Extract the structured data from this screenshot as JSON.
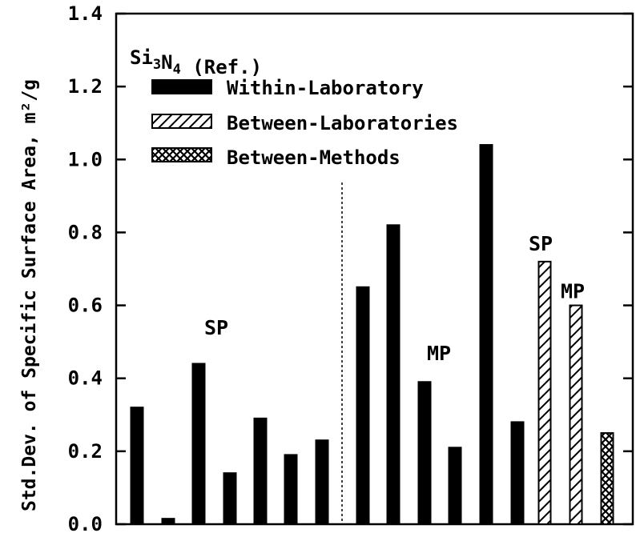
{
  "chart_data": {
    "type": "bar",
    "title": "",
    "xlabel": "",
    "ylabel": "Std.Dev. of Specific Surface Area, m²/g",
    "ylim": [
      0,
      1.4
    ],
    "yticks": [
      "0.0",
      "0.2",
      "0.4",
      "0.6",
      "0.8",
      "1.0",
      "1.2",
      "1.4"
    ],
    "grid": false,
    "legend": {
      "placement": "top-left",
      "title": "Si3N4 (Ref.)",
      "entries": [
        "Within-Laboratory",
        "Between-Laboratories",
        "Between-Methods"
      ]
    },
    "series": [
      {
        "name": "Within-Laboratory",
        "pattern": "solid",
        "values": [
          0.32,
          0.015,
          0.44,
          0.14,
          0.29,
          0.19,
          0.23,
          0.65,
          0.82,
          0.39,
          0.21,
          1.04,
          0.28
        ]
      },
      {
        "name": "Between-Laboratories",
        "pattern": "hatch",
        "values": [
          0.72,
          0.6
        ]
      },
      {
        "name": "Between-Methods",
        "pattern": "crosshatch",
        "values": [
          0.25
        ]
      }
    ],
    "annotations": [
      {
        "text": "SP",
        "near": "within-lab group 1",
        "y": 0.52
      },
      {
        "text": "MP",
        "near": "within-lab group 2",
        "y": 0.45
      },
      {
        "text": "SP",
        "near": "between-lab bar 1",
        "y": 0.75
      },
      {
        "text": "MP",
        "near": "between-lab bar 2",
        "y": 0.62
      }
    ]
  }
}
